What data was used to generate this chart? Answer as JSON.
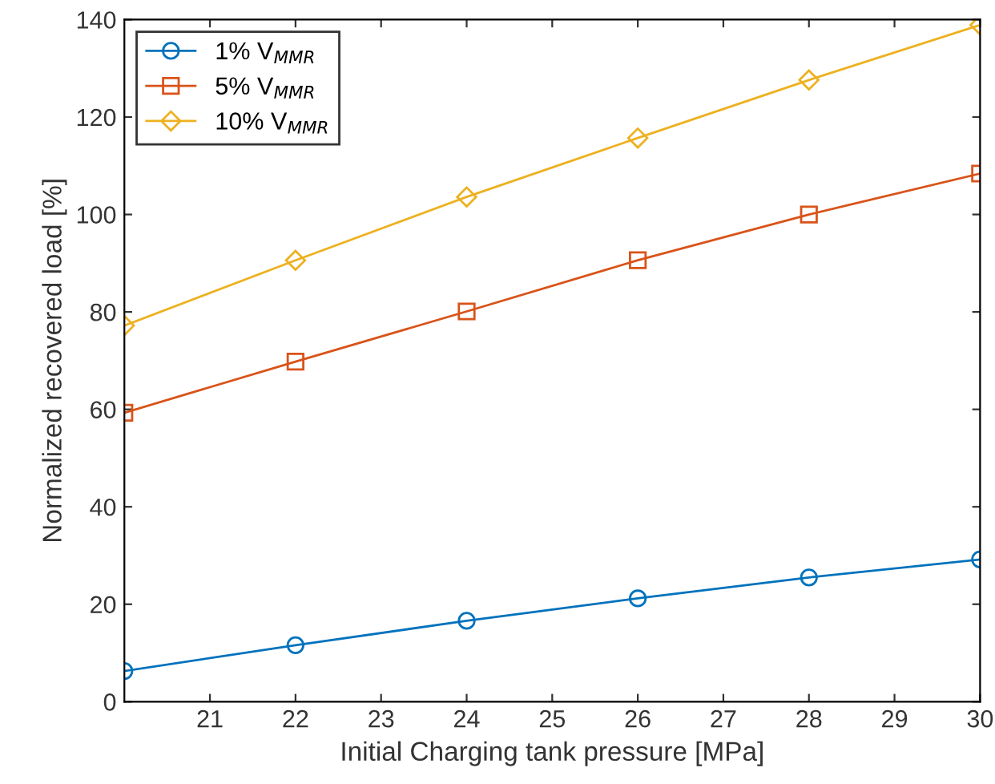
{
  "chart_data": {
    "type": "line",
    "xlabel": "Initial Charging tank pressure [MPa]",
    "ylabel": "Normalized recovered load [%]",
    "x": [
      20,
      22,
      24,
      26,
      28,
      30
    ],
    "series": [
      {
        "name": "1% V$_{MMR}$",
        "color": "#0072bd",
        "marker": "circle",
        "values": [
          6.3,
          11.6,
          16.6,
          21.2,
          25.5,
          29.2
        ]
      },
      {
        "name": "5% V$_{MMR}$",
        "color": "#d95319",
        "marker": "square",
        "values": [
          59.3,
          69.8,
          80.1,
          90.6,
          100,
          108.4
        ]
      },
      {
        "name": "10% V$_{MMR}$",
        "color": "#edb120",
        "marker": "diamond",
        "values": [
          77.2,
          90.6,
          103.6,
          115.7,
          127.6,
          138.9
        ]
      }
    ],
    "xlim": [
      20,
      30
    ],
    "xticks": [
      21,
      22,
      23,
      24,
      25,
      26,
      27,
      28,
      29,
      30
    ],
    "ylim": [
      0,
      140
    ],
    "yticks": [
      0,
      20,
      40,
      60,
      80,
      100,
      120,
      140
    ],
    "grid": false,
    "legend": "top left",
    "line_style": "solid"
  }
}
